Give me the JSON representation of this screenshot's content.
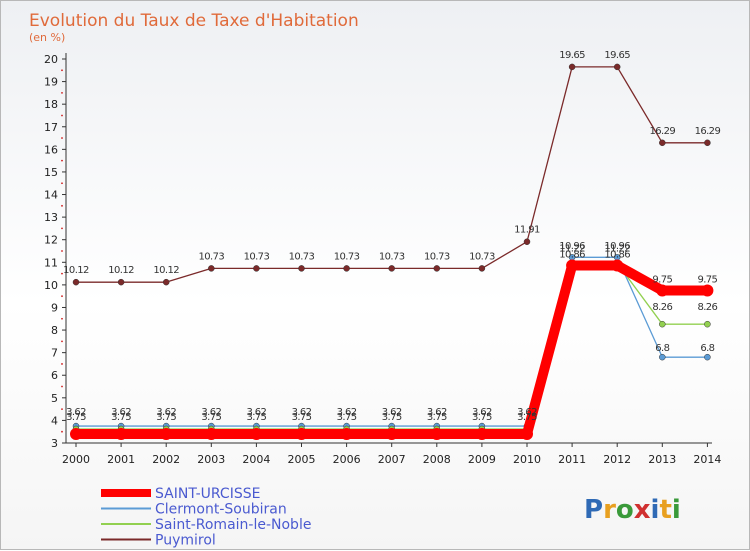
{
  "chart_data": {
    "type": "line",
    "title": "Evolution du Taux de Taxe d'Habitation",
    "subtitle": "(en %)",
    "x": [
      "2000",
      "2001",
      "2002",
      "2003",
      "2004",
      "2005",
      "2006",
      "2007",
      "2008",
      "2009",
      "2010",
      "2011",
      "2012",
      "2013",
      "2014"
    ],
    "ylim": [
      3,
      20
    ],
    "yticks": [
      3,
      4,
      5,
      6,
      7,
      8,
      9,
      10,
      11,
      12,
      13,
      14,
      15,
      16,
      17,
      18,
      19,
      20
    ],
    "grid": false,
    "legend_position": "bottom-left",
    "series": [
      {
        "name": "SAINT-URCISSE",
        "color": "#ff0000",
        "values": [
          3.4,
          3.4,
          3.4,
          3.4,
          3.4,
          3.4,
          3.4,
          3.4,
          3.4,
          3.4,
          3.4,
          10.86,
          10.86,
          9.75,
          9.75
        ],
        "labels": [
          "",
          "",
          "",
          "",
          "",
          "",
          "",
          "",
          "",
          "",
          "",
          "10.86",
          "10.86",
          "9.75",
          "9.75"
        ]
      },
      {
        "name": "Clermont-Soubiran",
        "color": "#5b9bd5",
        "values": [
          3.75,
          3.75,
          3.75,
          3.75,
          3.75,
          3.75,
          3.75,
          3.75,
          3.75,
          3.75,
          3.75,
          11.22,
          11.22,
          6.8,
          6.8
        ],
        "labels": [
          "3.75",
          "3.75",
          "3.75",
          "3.75",
          "3.75",
          "3.75",
          "3.75",
          "3.75",
          "3.75",
          "3.75",
          "3.75",
          "11.22",
          "11.22",
          "6.8",
          "6.8"
        ]
      },
      {
        "name": "Saint-Romain-le-Noble",
        "color": "#92d050",
        "values": [
          3.62,
          3.62,
          3.62,
          3.62,
          3.62,
          3.62,
          3.62,
          3.62,
          3.62,
          3.62,
          3.62,
          10.96,
          10.96,
          8.26,
          8.26
        ],
        "labels": [
          "3.62",
          "3.62",
          "3.62",
          "3.62",
          "3.62",
          "3.62",
          "3.62",
          "3.62",
          "3.62",
          "3.62",
          "3.62",
          "10.96",
          "10.96",
          "8.26",
          "8.26"
        ]
      },
      {
        "name": "Puymirol",
        "color": "#7b2a2a",
        "values": [
          10.12,
          10.12,
          10.12,
          10.73,
          10.73,
          10.73,
          10.73,
          10.73,
          10.73,
          10.73,
          11.91,
          19.65,
          19.65,
          16.29,
          16.29
        ],
        "labels": [
          "10.12",
          "10.12",
          "10.12",
          "10.73",
          "10.73",
          "10.73",
          "10.73",
          "10.73",
          "10.73",
          "10.73",
          "11.91",
          "19.65",
          "19.65",
          "16.29",
          "16.29"
        ]
      }
    ]
  },
  "logo": {
    "text": "Proxiti",
    "colors": [
      "#2f6ab5",
      "#e8a020",
      "#3a9a3a",
      "#d03030"
    ]
  }
}
